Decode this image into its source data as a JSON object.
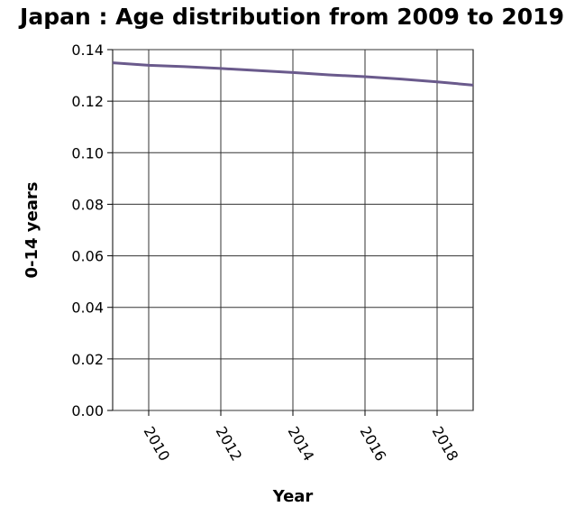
{
  "chart_data": {
    "type": "line",
    "title": "Japan : Age distribution from 2009 to 2019",
    "xlabel": "Year",
    "ylabel": "0-14 years",
    "x": [
      2009,
      2010,
      2011,
      2012,
      2013,
      2014,
      2015,
      2016,
      2017,
      2018,
      2019
    ],
    "series": [
      {
        "values": [
          0.1349,
          0.1339,
          0.1334,
          0.1327,
          0.1319,
          0.1311,
          0.1302,
          0.1295,
          0.1286,
          0.1275,
          0.1262
        ]
      }
    ],
    "xlim": [
      2009,
      2019
    ],
    "ylim": [
      0,
      0.14
    ],
    "xticks": [
      "2010",
      "2012",
      "2014",
      "2016",
      "2018"
    ],
    "yticks": [
      "0.00",
      "0.02",
      "0.04",
      "0.06",
      "0.08",
      "0.10",
      "0.12",
      "0.14"
    ],
    "grid": true,
    "line_color": "#6a5a8c"
  }
}
